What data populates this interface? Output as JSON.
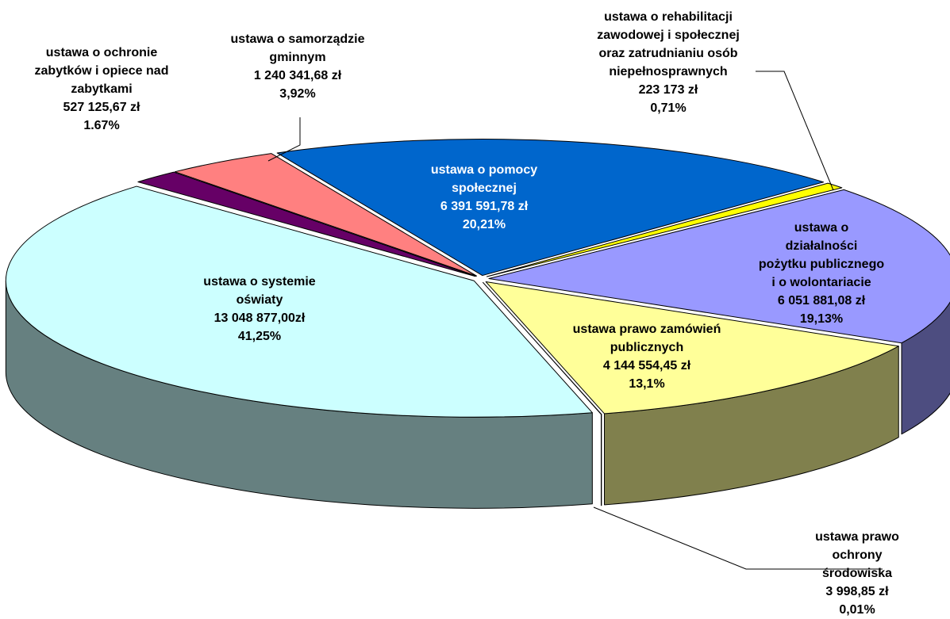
{
  "chart_data": {
    "type": "pie3d",
    "categories": [
      "ustawa o pomocy\nspołecznej",
      "ustawa o rehabilitacji\nzawodowej i społecznej\noraz zatrudnianiu osób\nniepełnosprawnych",
      "ustawa o działalności\npożytku publicznego\ni o wolontariacie",
      "ustawa prawo zamówień\npublicznych",
      "ustawa prawo ochrony\nśrodowiska",
      "ustawa o systemie\noświaty",
      "ustawa o ochronie\nzabytków i opiece nad\nzabytkami",
      "ustawa o samorządzie\ngminnym"
    ],
    "values": [
      20.21,
      0.71,
      19.13,
      13.1,
      0.01,
      41.25,
      1.67,
      3.92
    ],
    "value_labels": [
      "20,21%",
      "0,71%",
      "19,13%",
      "13,1%",
      "0,01%",
      "41,25%",
      "1.67%",
      "3,92%"
    ],
    "amount_labels": [
      "6 391 591,78 zł",
      "223 173 zł",
      "6 051 881,08 zł",
      "4 144 554,45 zł",
      "3 998,85 zł",
      "13 048 877,00zł",
      "527 125,67 zł",
      "1 240 341,68 zł"
    ],
    "colors": [
      "#0066cc",
      "#ffff00",
      "#9999ff",
      "#ffff99",
      "#808040",
      "#ccffff",
      "#660066",
      "#ff8080"
    ]
  }
}
